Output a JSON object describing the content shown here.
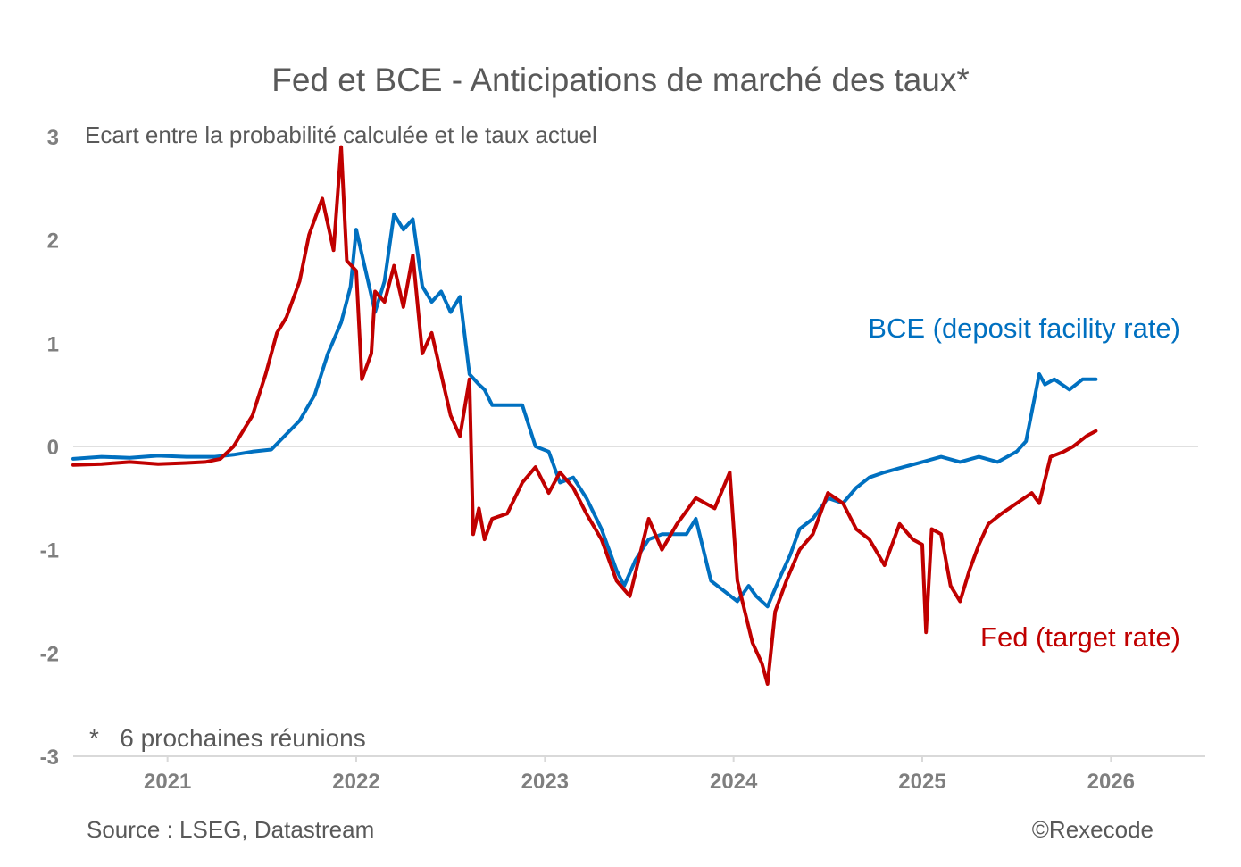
{
  "chart_data": {
    "type": "line",
    "title": "Fed et BCE - Anticipations de marché des taux*",
    "subtitle": "Ecart entre la probabilité calculée et le taux actuel",
    "note": "*   6 prochaines réunions",
    "source": "Source :  LSEG, Datastream",
    "credit": "©Rexecode",
    "xlabel": "",
    "ylabel": "",
    "x_range": [
      2020.5,
      2026.5
    ],
    "ylim": [
      -3,
      3
    ],
    "y_ticks": [
      3,
      2,
      1,
      0,
      -1,
      -2,
      -3
    ],
    "x_tick_labels": [
      "2021",
      "2022",
      "2023",
      "2024",
      "2025",
      "2026"
    ],
    "grid": false,
    "zero_line": true,
    "series": [
      {
        "name": "BCE (deposit facility rate)",
        "color": "#0070C0",
        "x": [
          2020.5,
          2020.65,
          2020.8,
          2020.95,
          2021.1,
          2021.25,
          2021.35,
          2021.45,
          2021.55,
          2021.62,
          2021.7,
          2021.78,
          2021.85,
          2021.92,
          2021.97,
          2022.0,
          2022.05,
          2022.1,
          2022.15,
          2022.2,
          2022.25,
          2022.3,
          2022.35,
          2022.4,
          2022.45,
          2022.5,
          2022.55,
          2022.6,
          2022.65,
          2022.68,
          2022.72,
          2022.8,
          2022.88,
          2022.95,
          2023.02,
          2023.08,
          2023.15,
          2023.22,
          2023.3,
          2023.38,
          2023.42,
          2023.48,
          2023.55,
          2023.62,
          2023.68,
          2023.75,
          2023.8,
          2023.88,
          2023.95,
          2024.02,
          2024.08,
          2024.12,
          2024.18,
          2024.25,
          2024.3,
          2024.35,
          2024.42,
          2024.5,
          2024.58,
          2024.65,
          2024.72,
          2024.8,
          2024.9,
          2025.0,
          2025.1,
          2025.2,
          2025.3,
          2025.4,
          2025.5,
          2025.55,
          2025.62,
          2025.65,
          2025.7,
          2025.78,
          2025.85,
          2025.92
        ],
        "values": [
          -0.12,
          -0.1,
          -0.11,
          -0.09,
          -0.1,
          -0.1,
          -0.08,
          -0.05,
          -0.03,
          0.1,
          0.25,
          0.5,
          0.9,
          1.2,
          1.55,
          2.1,
          1.7,
          1.3,
          1.6,
          2.25,
          2.1,
          2.2,
          1.55,
          1.4,
          1.5,
          1.3,
          1.45,
          0.7,
          0.6,
          0.55,
          0.4,
          0.4,
          0.4,
          0.0,
          -0.05,
          -0.35,
          -0.3,
          -0.5,
          -0.8,
          -1.2,
          -1.35,
          -1.1,
          -0.9,
          -0.85,
          -0.85,
          -0.85,
          -0.7,
          -1.3,
          -1.4,
          -1.5,
          -1.35,
          -1.45,
          -1.55,
          -1.25,
          -1.05,
          -0.8,
          -0.7,
          -0.5,
          -0.55,
          -0.4,
          -0.3,
          -0.25,
          -0.2,
          -0.15,
          -0.1,
          -0.15,
          -0.1,
          -0.15,
          -0.05,
          0.05,
          0.7,
          0.6,
          0.65,
          0.55,
          0.65,
          0.65
        ]
      },
      {
        "name": "Fed (target rate)",
        "color": "#C00000",
        "x": [
          2020.5,
          2020.65,
          2020.8,
          2020.95,
          2021.1,
          2021.2,
          2021.28,
          2021.35,
          2021.45,
          2021.52,
          2021.58,
          2021.63,
          2021.7,
          2021.75,
          2021.82,
          2021.88,
          2021.92,
          2021.95,
          2022.0,
          2022.03,
          2022.08,
          2022.1,
          2022.15,
          2022.2,
          2022.25,
          2022.3,
          2022.35,
          2022.4,
          2022.45,
          2022.5,
          2022.55,
          2022.6,
          2022.62,
          2022.65,
          2022.68,
          2022.72,
          2022.8,
          2022.88,
          2022.95,
          2023.02,
          2023.08,
          2023.15,
          2023.22,
          2023.3,
          2023.38,
          2023.45,
          2023.55,
          2023.62,
          2023.7,
          2023.8,
          2023.9,
          2023.98,
          2024.02,
          2024.1,
          2024.15,
          2024.18,
          2024.22,
          2024.28,
          2024.35,
          2024.42,
          2024.5,
          2024.58,
          2024.65,
          2024.72,
          2024.8,
          2024.88,
          2024.95,
          2025.0,
          2025.02,
          2025.05,
          2025.1,
          2025.15,
          2025.2,
          2025.25,
          2025.3,
          2025.35,
          2025.42,
          2025.5,
          2025.58,
          2025.62,
          2025.68,
          2025.75,
          2025.8,
          2025.87,
          2025.92
        ],
        "values": [
          -0.18,
          -0.17,
          -0.15,
          -0.17,
          -0.16,
          -0.15,
          -0.12,
          0.0,
          0.3,
          0.7,
          1.1,
          1.25,
          1.6,
          2.05,
          2.4,
          1.9,
          2.9,
          1.8,
          1.7,
          0.65,
          0.9,
          1.5,
          1.4,
          1.75,
          1.35,
          1.85,
          0.9,
          1.1,
          0.7,
          0.3,
          0.1,
          0.65,
          -0.85,
          -0.6,
          -0.9,
          -0.7,
          -0.65,
          -0.35,
          -0.2,
          -0.45,
          -0.25,
          -0.4,
          -0.65,
          -0.9,
          -1.3,
          -1.45,
          -0.7,
          -1.0,
          -0.75,
          -0.5,
          -0.6,
          -0.25,
          -1.3,
          -1.9,
          -2.1,
          -2.3,
          -1.6,
          -1.3,
          -1.0,
          -0.85,
          -0.45,
          -0.55,
          -0.8,
          -0.9,
          -1.15,
          -0.75,
          -0.9,
          -0.95,
          -1.8,
          -0.8,
          -0.85,
          -1.35,
          -1.5,
          -1.2,
          -0.95,
          -0.75,
          -0.65,
          -0.55,
          -0.45,
          -0.55,
          -0.1,
          -0.05,
          0.0,
          0.1,
          0.15
        ]
      }
    ]
  }
}
